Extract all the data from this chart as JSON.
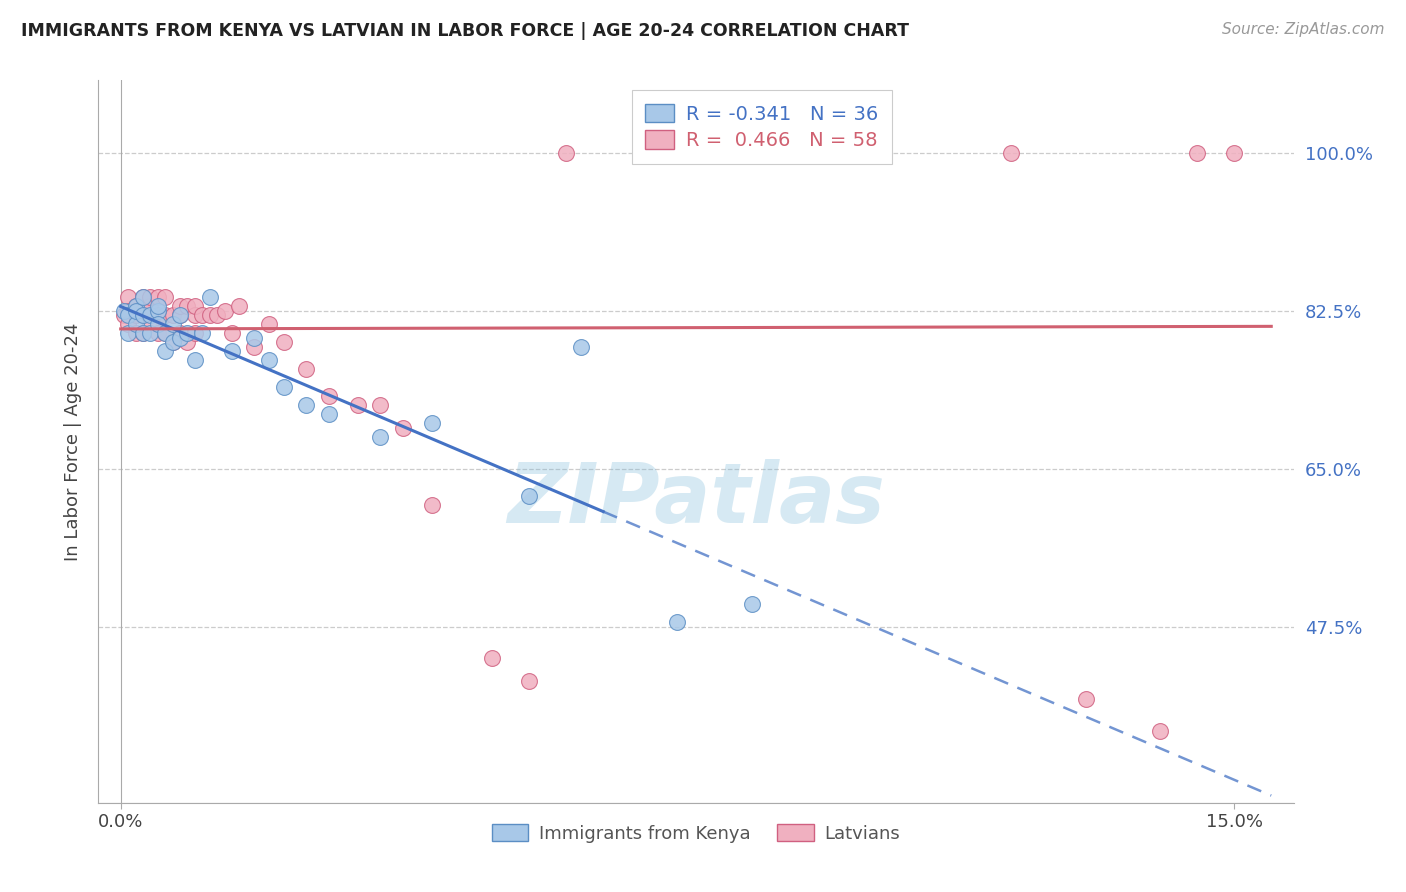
{
  "title": "IMMIGRANTS FROM KENYA VS LATVIAN IN LABOR FORCE | AGE 20-24 CORRELATION CHART",
  "source": "Source: ZipAtlas.com",
  "ylabel": "In Labor Force | Age 20-24",
  "xlim": [
    -0.003,
    0.158
  ],
  "ylim": [
    0.28,
    1.08
  ],
  "yticks": [
    0.475,
    0.65,
    0.825,
    1.0
  ],
  "ytick_labels": [
    "47.5%",
    "65.0%",
    "82.5%",
    "100.0%"
  ],
  "xtick_labels": [
    "0.0%",
    "15.0%"
  ],
  "xtick_pos": [
    0.0,
    0.15
  ],
  "kenya_R": -0.341,
  "kenya_N": 36,
  "latvian_R": 0.466,
  "latvian_N": 58,
  "kenya_fill_color": "#a8c8e8",
  "kenya_edge_color": "#5b8ec4",
  "latvian_fill_color": "#f0b0c0",
  "latvian_edge_color": "#d06080",
  "kenya_line_color": "#4472c4",
  "latvian_line_color": "#d06070",
  "kenya_x": [
    0.0005,
    0.001,
    0.001,
    0.002,
    0.002,
    0.002,
    0.003,
    0.003,
    0.003,
    0.004,
    0.004,
    0.005,
    0.005,
    0.005,
    0.006,
    0.006,
    0.007,
    0.007,
    0.008,
    0.008,
    0.009,
    0.01,
    0.011,
    0.012,
    0.015,
    0.018,
    0.02,
    0.022,
    0.025,
    0.028,
    0.035,
    0.042,
    0.055,
    0.062,
    0.075,
    0.085
  ],
  "kenya_y": [
    0.825,
    0.82,
    0.8,
    0.83,
    0.81,
    0.825,
    0.8,
    0.82,
    0.84,
    0.82,
    0.8,
    0.825,
    0.83,
    0.81,
    0.8,
    0.78,
    0.81,
    0.79,
    0.82,
    0.795,
    0.8,
    0.77,
    0.8,
    0.84,
    0.78,
    0.795,
    0.77,
    0.74,
    0.72,
    0.71,
    0.685,
    0.7,
    0.62,
    0.785,
    0.48,
    0.5
  ],
  "latvian_x": [
    0.0005,
    0.001,
    0.001,
    0.001,
    0.002,
    0.002,
    0.002,
    0.003,
    0.003,
    0.003,
    0.003,
    0.004,
    0.004,
    0.004,
    0.005,
    0.005,
    0.005,
    0.006,
    0.006,
    0.006,
    0.007,
    0.007,
    0.008,
    0.008,
    0.008,
    0.009,
    0.009,
    0.01,
    0.01,
    0.01,
    0.011,
    0.012,
    0.013,
    0.014,
    0.015,
    0.016,
    0.018,
    0.02,
    0.022,
    0.025,
    0.028,
    0.032,
    0.035,
    0.038,
    0.042,
    0.05,
    0.055,
    0.06,
    0.07,
    0.075,
    0.09,
    0.095,
    0.1,
    0.12,
    0.13,
    0.14,
    0.145,
    0.15
  ],
  "latvian_y": [
    0.82,
    0.84,
    0.825,
    0.81,
    0.83,
    0.82,
    0.8,
    0.825,
    0.84,
    0.82,
    0.8,
    0.83,
    0.81,
    0.84,
    0.82,
    0.8,
    0.84,
    0.82,
    0.8,
    0.84,
    0.82,
    0.79,
    0.82,
    0.8,
    0.83,
    0.79,
    0.83,
    0.82,
    0.8,
    0.83,
    0.82,
    0.82,
    0.82,
    0.825,
    0.8,
    0.83,
    0.785,
    0.81,
    0.79,
    0.76,
    0.73,
    0.72,
    0.72,
    0.695,
    0.61,
    0.44,
    0.415,
    1.0,
    1.0,
    1.0,
    1.0,
    1.0,
    1.0,
    1.0,
    0.395,
    0.36,
    1.0,
    1.0
  ],
  "watermark": "ZIPatlas",
  "bg_color": "#ffffff",
  "grid_color": "#cccccc"
}
